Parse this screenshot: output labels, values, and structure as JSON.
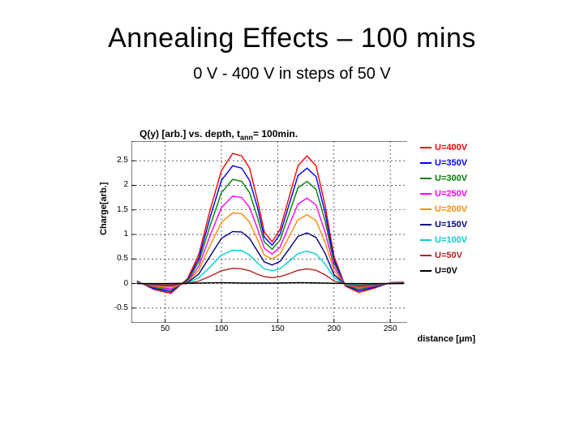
{
  "slide": {
    "title": "Annealing Effects – 100 mins",
    "subtitle": "0 V - 400 V in steps of 50 V"
  },
  "chart": {
    "type": "line",
    "plot_title": "Q(y) [arb.] vs. depth, tₐₙₙ= 100min.",
    "ylabel": "Charge[arb.]",
    "xlabel": "distance [μm]",
    "xlim": [
      20,
      265
    ],
    "ylim": [
      -0.8,
      2.9
    ],
    "xticks": [
      50,
      100,
      150,
      200,
      250
    ],
    "yticks": [
      -0.5,
      0,
      0.5,
      1,
      1.5,
      2,
      2.5
    ],
    "grid_color": "#000000",
    "grid_dash": "2 3",
    "background_color": "#ffffff",
    "axis_color": "#000000",
    "xgrid_at": [
      50,
      100,
      150,
      200,
      250
    ],
    "ygrid_at": [
      -0.5,
      0,
      0.5,
      1,
      1.5,
      2,
      2.5
    ],
    "series": [
      {
        "label": "U=400V",
        "color": "#ff0000",
        "data": [
          [
            25,
            0.05
          ],
          [
            40,
            -0.12
          ],
          [
            55,
            -0.2
          ],
          [
            70,
            0.1
          ],
          [
            80,
            0.6
          ],
          [
            90,
            1.5
          ],
          [
            100,
            2.3
          ],
          [
            110,
            2.65
          ],
          [
            118,
            2.6
          ],
          [
            125,
            2.35
          ],
          [
            132,
            1.7
          ],
          [
            138,
            1.05
          ],
          [
            145,
            0.85
          ],
          [
            152,
            1.1
          ],
          [
            160,
            1.75
          ],
          [
            168,
            2.4
          ],
          [
            176,
            2.6
          ],
          [
            184,
            2.4
          ],
          [
            192,
            1.6
          ],
          [
            200,
            0.55
          ],
          [
            210,
            -0.05
          ],
          [
            222,
            -0.18
          ],
          [
            235,
            -0.1
          ],
          [
            250,
            0.02
          ],
          [
            262,
            0.03
          ]
        ]
      },
      {
        "label": "U=350V",
        "color": "#0000ff",
        "data": [
          [
            25,
            0.04
          ],
          [
            40,
            -0.1
          ],
          [
            55,
            -0.17
          ],
          [
            70,
            0.08
          ],
          [
            80,
            0.52
          ],
          [
            90,
            1.35
          ],
          [
            100,
            2.1
          ],
          [
            110,
            2.4
          ],
          [
            118,
            2.35
          ],
          [
            125,
            2.1
          ],
          [
            132,
            1.55
          ],
          [
            138,
            0.95
          ],
          [
            145,
            0.78
          ],
          [
            152,
            1.0
          ],
          [
            160,
            1.6
          ],
          [
            168,
            2.2
          ],
          [
            176,
            2.35
          ],
          [
            184,
            2.18
          ],
          [
            192,
            1.45
          ],
          [
            200,
            0.48
          ],
          [
            210,
            -0.04
          ],
          [
            222,
            -0.15
          ],
          [
            235,
            -0.08
          ],
          [
            250,
            0.02
          ],
          [
            262,
            0.02
          ]
        ]
      },
      {
        "label": "U=300V",
        "color": "#008000",
        "data": [
          [
            25,
            0.03
          ],
          [
            40,
            -0.08
          ],
          [
            55,
            -0.14
          ],
          [
            70,
            0.06
          ],
          [
            80,
            0.45
          ],
          [
            90,
            1.18
          ],
          [
            100,
            1.85
          ],
          [
            110,
            2.12
          ],
          [
            118,
            2.08
          ],
          [
            125,
            1.85
          ],
          [
            132,
            1.35
          ],
          [
            138,
            0.85
          ],
          [
            145,
            0.7
          ],
          [
            152,
            0.88
          ],
          [
            160,
            1.42
          ],
          [
            168,
            1.95
          ],
          [
            176,
            2.08
          ],
          [
            184,
            1.92
          ],
          [
            192,
            1.28
          ],
          [
            200,
            0.42
          ],
          [
            210,
            -0.03
          ],
          [
            222,
            -0.12
          ],
          [
            235,
            -0.06
          ],
          [
            250,
            0.01
          ],
          [
            262,
            0.02
          ]
        ]
      },
      {
        "label": "U=250V",
        "color": "#ff00ff",
        "data": [
          [
            25,
            0.02
          ],
          [
            40,
            -0.06
          ],
          [
            55,
            -0.11
          ],
          [
            70,
            0.04
          ],
          [
            80,
            0.36
          ],
          [
            90,
            0.98
          ],
          [
            100,
            1.55
          ],
          [
            110,
            1.78
          ],
          [
            118,
            1.75
          ],
          [
            125,
            1.55
          ],
          [
            132,
            1.12
          ],
          [
            138,
            0.72
          ],
          [
            145,
            0.6
          ],
          [
            152,
            0.74
          ],
          [
            160,
            1.18
          ],
          [
            168,
            1.62
          ],
          [
            176,
            1.74
          ],
          [
            184,
            1.6
          ],
          [
            192,
            1.05
          ],
          [
            200,
            0.34
          ],
          [
            210,
            -0.02
          ],
          [
            222,
            -0.09
          ],
          [
            235,
            -0.05
          ],
          [
            250,
            0.01
          ],
          [
            262,
            0.01
          ]
        ]
      },
      {
        "label": "U=200V",
        "color": "#ff8c00",
        "data": [
          [
            25,
            0.02
          ],
          [
            40,
            -0.05
          ],
          [
            55,
            -0.08
          ],
          [
            70,
            0.03
          ],
          [
            80,
            0.28
          ],
          [
            90,
            0.78
          ],
          [
            100,
            1.25
          ],
          [
            110,
            1.44
          ],
          [
            118,
            1.42
          ],
          [
            125,
            1.25
          ],
          [
            132,
            0.9
          ],
          [
            138,
            0.58
          ],
          [
            145,
            0.5
          ],
          [
            152,
            0.6
          ],
          [
            160,
            0.95
          ],
          [
            168,
            1.3
          ],
          [
            176,
            1.4
          ],
          [
            184,
            1.28
          ],
          [
            192,
            0.84
          ],
          [
            200,
            0.26
          ],
          [
            210,
            -0.02
          ],
          [
            222,
            -0.07
          ],
          [
            235,
            -0.04
          ],
          [
            250,
            0.01
          ],
          [
            262,
            0.01
          ]
        ]
      },
      {
        "label": "U=150V",
        "color": "#000080",
        "data": [
          [
            25,
            0.01
          ],
          [
            40,
            -0.03
          ],
          [
            55,
            -0.05
          ],
          [
            70,
            0.02
          ],
          [
            80,
            0.2
          ],
          [
            90,
            0.56
          ],
          [
            100,
            0.92
          ],
          [
            110,
            1.06
          ],
          [
            118,
            1.05
          ],
          [
            125,
            0.92
          ],
          [
            132,
            0.66
          ],
          [
            138,
            0.44
          ],
          [
            145,
            0.38
          ],
          [
            152,
            0.45
          ],
          [
            160,
            0.7
          ],
          [
            168,
            0.96
          ],
          [
            176,
            1.03
          ],
          [
            184,
            0.94
          ],
          [
            192,
            0.62
          ],
          [
            200,
            0.18
          ],
          [
            210,
            -0.01
          ],
          [
            222,
            -0.05
          ],
          [
            235,
            -0.03
          ],
          [
            250,
            0.0
          ],
          [
            262,
            0.01
          ]
        ]
      },
      {
        "label": "U=100V",
        "color": "#00ced1",
        "data": [
          [
            25,
            0.01
          ],
          [
            40,
            -0.02
          ],
          [
            55,
            -0.03
          ],
          [
            70,
            0.01
          ],
          [
            80,
            0.12
          ],
          [
            90,
            0.34
          ],
          [
            100,
            0.58
          ],
          [
            110,
            0.68
          ],
          [
            118,
            0.67
          ],
          [
            125,
            0.58
          ],
          [
            132,
            0.42
          ],
          [
            138,
            0.3
          ],
          [
            145,
            0.26
          ],
          [
            152,
            0.3
          ],
          [
            160,
            0.45
          ],
          [
            168,
            0.61
          ],
          [
            176,
            0.66
          ],
          [
            184,
            0.6
          ],
          [
            192,
            0.4
          ],
          [
            200,
            0.12
          ],
          [
            210,
            -0.01
          ],
          [
            222,
            -0.03
          ],
          [
            235,
            -0.02
          ],
          [
            250,
            0.0
          ],
          [
            262,
            0.0
          ]
        ]
      },
      {
        "label": "U=50V",
        "color": "#b22222",
        "data": [
          [
            25,
            0.0
          ],
          [
            40,
            -0.01
          ],
          [
            55,
            -0.02
          ],
          [
            70,
            0.0
          ],
          [
            80,
            0.05
          ],
          [
            90,
            0.15
          ],
          [
            100,
            0.26
          ],
          [
            110,
            0.31
          ],
          [
            118,
            0.3
          ],
          [
            125,
            0.26
          ],
          [
            132,
            0.19
          ],
          [
            138,
            0.14
          ],
          [
            145,
            0.12
          ],
          [
            152,
            0.14
          ],
          [
            160,
            0.2
          ],
          [
            168,
            0.27
          ],
          [
            176,
            0.3
          ],
          [
            184,
            0.27
          ],
          [
            192,
            0.18
          ],
          [
            200,
            0.05
          ],
          [
            210,
            0.0
          ],
          [
            222,
            -0.01
          ],
          [
            235,
            -0.01
          ],
          [
            250,
            0.0
          ],
          [
            262,
            0.0
          ]
        ]
      },
      {
        "label": "U=0V",
        "color": "#000000",
        "data": [
          [
            25,
            0.0
          ],
          [
            50,
            0.0
          ],
          [
            80,
            0.01
          ],
          [
            100,
            0.02
          ],
          [
            120,
            0.01
          ],
          [
            145,
            0.01
          ],
          [
            170,
            0.02
          ],
          [
            190,
            0.01
          ],
          [
            210,
            0.0
          ],
          [
            240,
            0.0
          ],
          [
            262,
            0.0
          ]
        ]
      }
    ],
    "line_width": 1.4,
    "title_fontsize": 12,
    "label_fontsize": 11,
    "tick_fontsize": 10
  }
}
